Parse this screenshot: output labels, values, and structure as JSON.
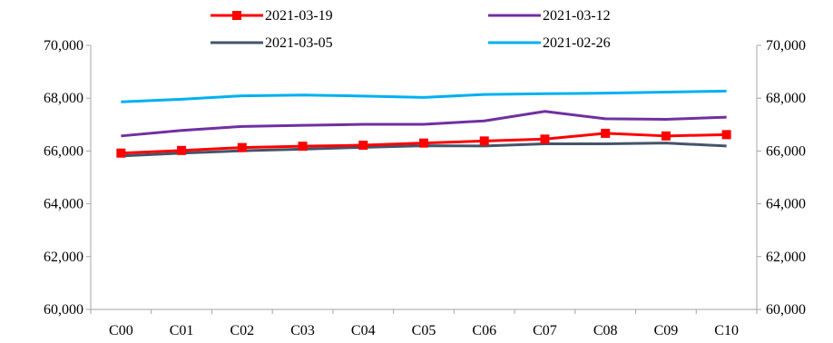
{
  "chart_data": {
    "type": "line",
    "categories": [
      "C00",
      "C01",
      "C02",
      "C03",
      "C04",
      "C05",
      "C06",
      "C07",
      "C08",
      "C09",
      "C10"
    ],
    "ylim": [
      60000,
      70000
    ],
    "yticks": [
      60000,
      62000,
      64000,
      66000,
      68000,
      70000
    ],
    "ytick_labels": [
      "60,000",
      "62,000",
      "64,000",
      "66,000",
      "68,000",
      "70,000"
    ],
    "y2lim": [
      60000,
      70000
    ],
    "y2tick_labels": [
      "60,000",
      "62,000",
      "64,000",
      "66,000",
      "68,000",
      "70,000"
    ],
    "legend_position": "top",
    "grid": false,
    "series": [
      {
        "name": "2021-03-19",
        "color": "#ff0000",
        "marker": "square",
        "values": [
          65920,
          66020,
          66130,
          66180,
          66220,
          66300,
          66380,
          66450,
          66670,
          66570,
          66620
        ]
      },
      {
        "name": "2021-03-12",
        "color": "#7030a0",
        "marker": "none",
        "values": [
          66570,
          66780,
          66930,
          66970,
          67010,
          67010,
          67140,
          67500,
          67220,
          67200,
          67280
        ]
      },
      {
        "name": "2021-03-05",
        "color": "#44546a",
        "marker": "none",
        "values": [
          65810,
          65920,
          66010,
          66070,
          66140,
          66200,
          66190,
          66270,
          66270,
          66300,
          66190
        ]
      },
      {
        "name": "2021-02-26",
        "color": "#00b0f0",
        "marker": "none",
        "values": [
          67860,
          67960,
          68090,
          68120,
          68080,
          68030,
          68140,
          68170,
          68190,
          68230,
          68270
        ]
      }
    ]
  }
}
